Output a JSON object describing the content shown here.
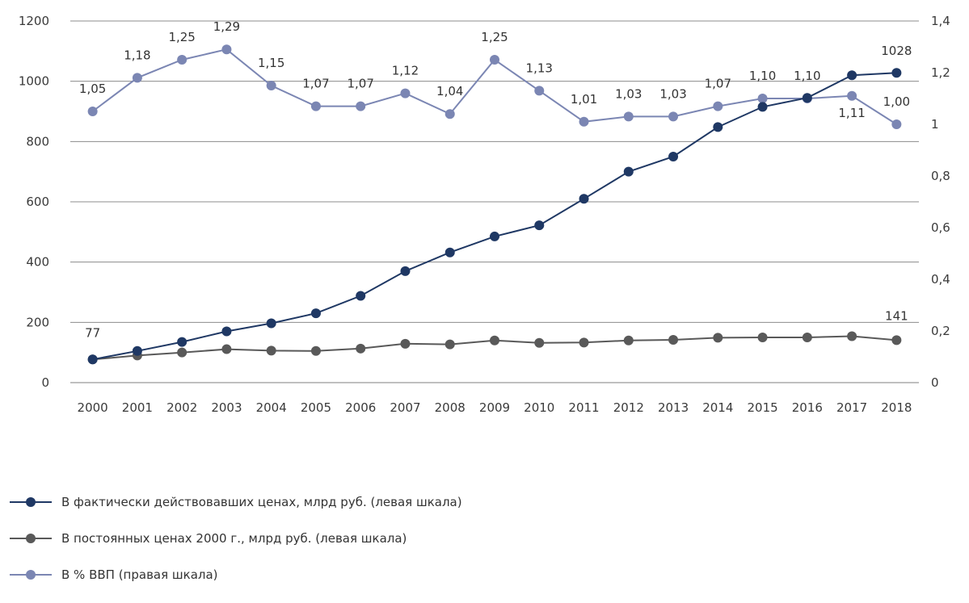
{
  "chart_data": {
    "type": "line",
    "categories": [
      "2000",
      "2001",
      "2002",
      "2003",
      "2004",
      "2005",
      "2006",
      "2007",
      "2008",
      "2009",
      "2010",
      "2011",
      "2012",
      "2013",
      "2014",
      "2015",
      "2016",
      "2017",
      "2018"
    ],
    "y_left": {
      "ticks": [
        "0",
        "200",
        "400",
        "600",
        "800",
        "1000",
        "1200"
      ],
      "ylim": [
        0,
        1200
      ]
    },
    "y_right": {
      "ticks": [
        "0",
        "0,2",
        "0,4",
        "0,6",
        "0,8",
        "1",
        "1,2",
        "1,4"
      ],
      "ylim": [
        0,
        1.4
      ]
    },
    "grid": "horizontal",
    "legend_position": "bottom-left",
    "series": [
      {
        "name": "В фактически действовавших ценах, млрд руб. (левая шкала)",
        "axis": "left",
        "color": "#1f3864",
        "values": [
          77,
          105,
          135,
          170,
          197,
          230,
          288,
          370,
          432,
          485,
          522,
          610,
          700,
          750,
          848,
          915,
          945,
          1020,
          1028
        ],
        "labels": {
          "0": "77",
          "18": "1028"
        }
      },
      {
        "name": "В постоянных ценах 2000 г., млрд руб. (левая шкала)",
        "axis": "left",
        "color": "#595959",
        "values": [
          77,
          90,
          100,
          111,
          106,
          105,
          113,
          129,
          127,
          140,
          132,
          133,
          140,
          142,
          149,
          150,
          150,
          154,
          141
        ],
        "labels": {
          "18": "141"
        }
      },
      {
        "name": "В % ВВП (правая шкала)",
        "axis": "right",
        "color": "#7b86b3",
        "values": [
          1.05,
          1.18,
          1.25,
          1.29,
          1.15,
          1.07,
          1.07,
          1.12,
          1.04,
          1.25,
          1.13,
          1.01,
          1.03,
          1.03,
          1.07,
          1.1,
          1.1,
          1.11,
          1.0
        ],
        "labels": [
          "1,05",
          "1,18",
          "1,25",
          "1,29",
          "1,15",
          "1,07",
          "1,07",
          "1,12",
          "1,04",
          "1,25",
          "1,13",
          "1,01",
          "1,03",
          "1,03",
          "1,07",
          "1,10",
          "1,10",
          "1,11",
          "1,00"
        ]
      }
    ]
  }
}
